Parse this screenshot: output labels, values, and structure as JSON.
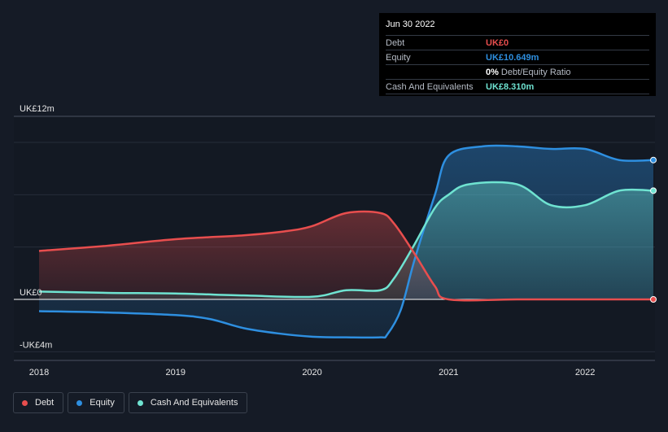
{
  "chart_data": {
    "type": "area",
    "x_ticks": [
      "2018",
      "2019",
      "2020",
      "2021",
      "2022"
    ],
    "y_ticks": [
      {
        "label": "UK£12m",
        "value": 12
      },
      {
        "label": "UK£0",
        "value": 0
      },
      {
        "label": "-UK£4m",
        "value": -4
      }
    ],
    "ylim": [
      -4,
      12
    ],
    "xlim": [
      2018.0,
      2022.5
    ],
    "grid": true,
    "legend_position": "bottom-left",
    "series": [
      {
        "name": "Debt",
        "color": "#e84e4e",
        "points": [
          [
            2018.0,
            3.7
          ],
          [
            2018.5,
            4.1
          ],
          [
            2019.0,
            4.6
          ],
          [
            2019.5,
            4.9
          ],
          [
            2019.8,
            5.2
          ],
          [
            2020.0,
            5.6
          ],
          [
            2020.25,
            6.6
          ],
          [
            2020.5,
            6.6
          ],
          [
            2020.6,
            5.8
          ],
          [
            2020.75,
            3.5
          ],
          [
            2020.9,
            1.0
          ],
          [
            2021.0,
            0.0
          ],
          [
            2021.5,
            0.0
          ],
          [
            2022.0,
            0.0
          ],
          [
            2022.5,
            0.0
          ]
        ]
      },
      {
        "name": "Equity",
        "color": "#2e8fe0",
        "points": [
          [
            2018.0,
            -0.9
          ],
          [
            2018.5,
            -1.0
          ],
          [
            2019.0,
            -1.2
          ],
          [
            2019.25,
            -1.5
          ],
          [
            2019.5,
            -2.2
          ],
          [
            2019.75,
            -2.6
          ],
          [
            2020.0,
            -2.85
          ],
          [
            2020.25,
            -2.9
          ],
          [
            2020.5,
            -2.9
          ],
          [
            2020.55,
            -2.7
          ],
          [
            2020.65,
            -0.8
          ],
          [
            2020.75,
            3.0
          ],
          [
            2020.9,
            8.0
          ],
          [
            2021.0,
            11.0
          ],
          [
            2021.25,
            11.7
          ],
          [
            2021.5,
            11.7
          ],
          [
            2021.75,
            11.5
          ],
          [
            2022.0,
            11.5
          ],
          [
            2022.25,
            10.65
          ],
          [
            2022.5,
            10.649
          ]
        ]
      },
      {
        "name": "Cash And Equivalents",
        "color": "#6fe3d1",
        "points": [
          [
            2018.0,
            0.6
          ],
          [
            2018.5,
            0.5
          ],
          [
            2019.0,
            0.45
          ],
          [
            2019.5,
            0.3
          ],
          [
            2020.0,
            0.2
          ],
          [
            2020.25,
            0.7
          ],
          [
            2020.5,
            0.7
          ],
          [
            2020.6,
            1.6
          ],
          [
            2020.75,
            4.2
          ],
          [
            2020.9,
            7.0
          ],
          [
            2021.0,
            8.0
          ],
          [
            2021.15,
            8.8
          ],
          [
            2021.5,
            8.8
          ],
          [
            2021.75,
            7.2
          ],
          [
            2022.0,
            7.2
          ],
          [
            2022.25,
            8.31
          ],
          [
            2022.5,
            8.31
          ]
        ]
      }
    ]
  },
  "tooltip": {
    "date": "Jun 30 2022",
    "debt_label": "Debt",
    "debt_value": "UK£0",
    "equity_label": "Equity",
    "equity_value": "UK£10.649m",
    "ratio_pct": "0%",
    "ratio_label": "Debt/Equity Ratio",
    "cash_label": "Cash And Equivalents",
    "cash_value": "UK£8.310m"
  },
  "legend": [
    {
      "label": "Debt",
      "color": "#e84e4e"
    },
    {
      "label": "Equity",
      "color": "#2e8fe0"
    },
    {
      "label": "Cash And Equivalents",
      "color": "#6fe3d1"
    }
  ]
}
